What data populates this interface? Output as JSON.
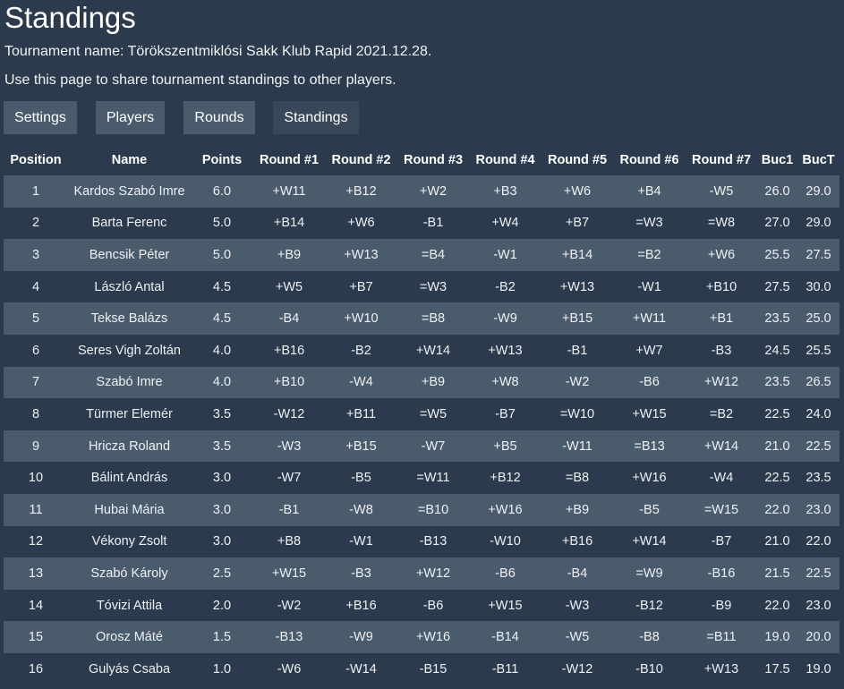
{
  "page": {
    "title": "Standings",
    "tournament_line": "Tournament name: Törökszentmiklósi Sakk Klub Rapid 2021.12.28.",
    "share_line": "Use this page to share tournament standings to other players."
  },
  "nav": {
    "settings": "Settings",
    "players": "Players",
    "rounds": "Rounds",
    "standings": "Standings",
    "active": "standings"
  },
  "table": {
    "headers": [
      "Position",
      "Name",
      "Points",
      "Round #1",
      "Round #2",
      "Round #3",
      "Round #4",
      "Round #5",
      "Round #6",
      "Round #7",
      "Buc1",
      "BucT"
    ],
    "rows": [
      [
        "1",
        "Kardos Szabó Imre",
        "6.0",
        "+W11",
        "+B12",
        "+W2",
        "+B3",
        "+W6",
        "+B4",
        "-W5",
        "26.0",
        "29.0"
      ],
      [
        "2",
        "Barta Ferenc",
        "5.0",
        "+B14",
        "+W6",
        "-B1",
        "+W4",
        "+B7",
        "=W3",
        "=W8",
        "27.0",
        "29.0"
      ],
      [
        "3",
        "Bencsik Péter",
        "5.0",
        "+B9",
        "+W13",
        "=B4",
        "-W1",
        "+B14",
        "=B2",
        "+W6",
        "25.5",
        "27.5"
      ],
      [
        "4",
        "László Antal",
        "4.5",
        "+W5",
        "+B7",
        "=W3",
        "-B2",
        "+W13",
        "-W1",
        "+B10",
        "27.5",
        "30.0"
      ],
      [
        "5",
        "Tekse Balázs",
        "4.5",
        "-B4",
        "+W10",
        "=B8",
        "-W9",
        "+B15",
        "+W11",
        "+B1",
        "23.5",
        "25.0"
      ],
      [
        "6",
        "Seres Vigh Zoltán",
        "4.0",
        "+B16",
        "-B2",
        "+W14",
        "+W13",
        "-B1",
        "+W7",
        "-B3",
        "24.5",
        "25.5"
      ],
      [
        "7",
        "Szabó Imre",
        "4.0",
        "+B10",
        "-W4",
        "+B9",
        "+W8",
        "-W2",
        "-B6",
        "+W12",
        "23.5",
        "26.5"
      ],
      [
        "8",
        "Türmer Elemér",
        "3.5",
        "-W12",
        "+B11",
        "=W5",
        "-B7",
        "=W10",
        "+W15",
        "=B2",
        "22.5",
        "24.0"
      ],
      [
        "9",
        "Hricza Roland",
        "3.5",
        "-W3",
        "+B15",
        "-W7",
        "+B5",
        "-W11",
        "=B13",
        "+W14",
        "21.0",
        "22.5"
      ],
      [
        "10",
        "Bálint András",
        "3.0",
        "-W7",
        "-B5",
        "=W11",
        "+B12",
        "=B8",
        "+W16",
        "-W4",
        "22.5",
        "23.5"
      ],
      [
        "11",
        "Hubai Mária",
        "3.0",
        "-B1",
        "-W8",
        "=B10",
        "+W16",
        "+B9",
        "-B5",
        "=W15",
        "22.0",
        "23.0"
      ],
      [
        "12",
        "Vékony Zsolt",
        "3.0",
        "+B8",
        "-W1",
        "-B13",
        "-W10",
        "+B16",
        "+W14",
        "-B7",
        "21.0",
        "22.0"
      ],
      [
        "13",
        "Szabó Károly",
        "2.5",
        "+W15",
        "-B3",
        "+W12",
        "-B6",
        "-B4",
        "=W9",
        "-B16",
        "21.5",
        "22.5"
      ],
      [
        "14",
        "Tóvizi Attila",
        "2.0",
        "-W2",
        "+B16",
        "-B6",
        "+W15",
        "-W3",
        "-B12",
        "-B9",
        "22.0",
        "23.0"
      ],
      [
        "15",
        "Orosz Máté",
        "1.5",
        "-B13",
        "-W9",
        "+W16",
        "-B14",
        "-W5",
        "-B8",
        "=B11",
        "19.0",
        "20.0"
      ],
      [
        "16",
        "Gulyás Csaba",
        "1.0",
        "-W6",
        "-W14",
        "-B15",
        "-B11",
        "-W12",
        "-B10",
        "+W13",
        "17.5",
        "19.0"
      ]
    ]
  },
  "colors": {
    "background": "#2b3a4c",
    "row_stripe": "#4a5b6c",
    "button": "#4a5b6c",
    "button_active": "#394859",
    "text": "#f1f3f5"
  }
}
